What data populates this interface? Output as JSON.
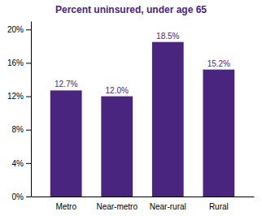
{
  "chart_data": {
    "type": "bar",
    "title": "Percent uninsured, under age 65",
    "categories": [
      "Metro",
      "Near-metro",
      "Near-rural",
      "Rural"
    ],
    "values": [
      12.7,
      12.0,
      18.5,
      15.2
    ],
    "value_labels": [
      "12.7%",
      "12.0%",
      "18.5%",
      "15.2%"
    ],
    "color": "#4a2580",
    "ylim": [
      0,
      21
    ],
    "yticks": [
      {
        "value": 0,
        "label": "0%"
      },
      {
        "value": 4,
        "label": "4%"
      },
      {
        "value": 8,
        "label": "8%"
      },
      {
        "value": 12,
        "label": "12%"
      },
      {
        "value": 16,
        "label": "16%"
      },
      {
        "value": 20,
        "label": "20%"
      }
    ],
    "grid": false,
    "data_labels": true
  }
}
